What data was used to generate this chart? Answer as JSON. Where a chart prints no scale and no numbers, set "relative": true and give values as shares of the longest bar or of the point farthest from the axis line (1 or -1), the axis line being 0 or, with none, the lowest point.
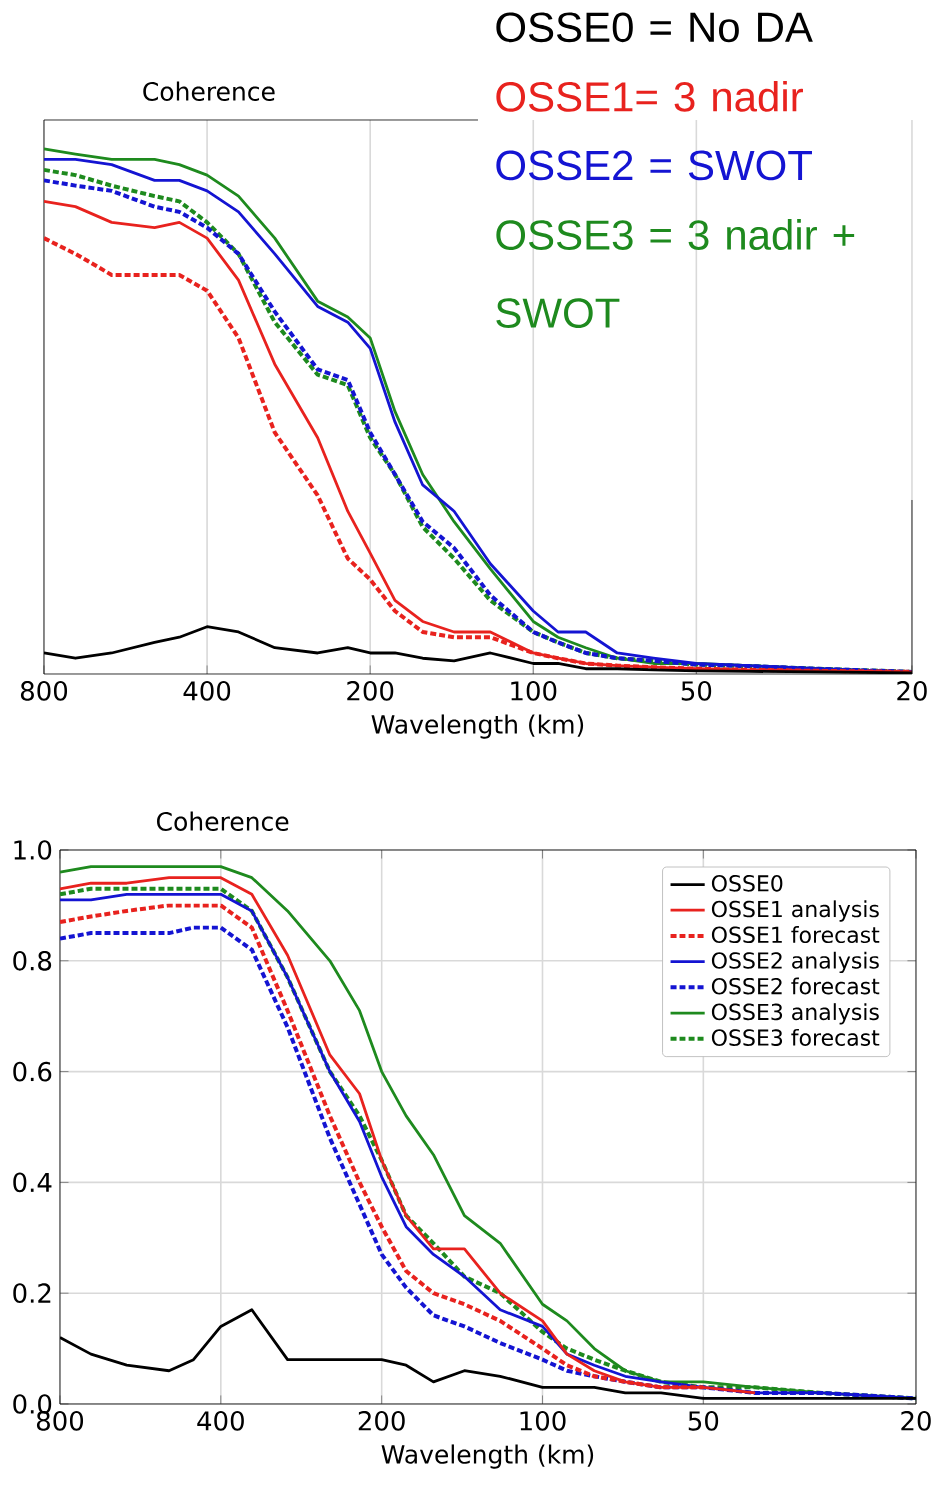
{
  "chart_data": [
    {
      "type": "line",
      "title": "Coherence",
      "xlabel": "Wavelength (km)",
      "relative": true,
      "log": "x",
      "grid": "x",
      "legend": "top right",
      "x": [
        800,
        700,
        600,
        500,
        450,
        400,
        350,
        300,
        250,
        220,
        200,
        180,
        160,
        140,
        120,
        100,
        90,
        80,
        70,
        60,
        50,
        40,
        30,
        20
      ],
      "xlim": [
        800,
        20
      ],
      "xticks": [
        800,
        400,
        200,
        100,
        50,
        20
      ],
      "series": [
        {
          "name": "OSSE0 = No DA",
          "color": "#000000",
          "line_style": "solid",
          "values": [
            0.04,
            0.03,
            0.04,
            0.06,
            0.07,
            0.09,
            0.08,
            0.05,
            0.04,
            0.05,
            0.04,
            0.04,
            0.03,
            0.025,
            0.04,
            0.02,
            0.02,
            0.01,
            0.01,
            0.008,
            0.006,
            0.005,
            0.004,
            0.002
          ]
        },
        {
          "name": "OSSE1= 3 nadir",
          "color": "#e8221e",
          "line_style": "solid",
          "values": [
            0.9,
            0.89,
            0.86,
            0.85,
            0.86,
            0.83,
            0.75,
            0.59,
            0.45,
            0.31,
            0.23,
            0.14,
            0.1,
            0.08,
            0.08,
            0.04,
            0.03,
            0.02,
            0.016,
            0.013,
            0.01,
            0.008,
            0.006,
            0.004
          ]
        },
        {
          "color": "#e8221e",
          "line_style": "dashed",
          "values": [
            0.83,
            0.8,
            0.76,
            0.76,
            0.76,
            0.73,
            0.64,
            0.46,
            0.34,
            0.22,
            0.18,
            0.12,
            0.08,
            0.07,
            0.07,
            0.04,
            0.03,
            0.02,
            0.016,
            0.013,
            0.01,
            0.008,
            0.006,
            0.004
          ]
        },
        {
          "name": "OSSE2 = SWOT",
          "color": "#1414d2",
          "line_style": "solid",
          "values": [
            0.98,
            0.98,
            0.97,
            0.94,
            0.94,
            0.92,
            0.88,
            0.8,
            0.7,
            0.67,
            0.62,
            0.48,
            0.36,
            0.31,
            0.21,
            0.12,
            0.08,
            0.08,
            0.04,
            0.03,
            0.02,
            0.016,
            0.01,
            0.004
          ]
        },
        {
          "color": "#1414d2",
          "line_style": "dashed",
          "values": [
            0.94,
            0.93,
            0.92,
            0.89,
            0.88,
            0.85,
            0.8,
            0.69,
            0.58,
            0.56,
            0.46,
            0.38,
            0.29,
            0.24,
            0.15,
            0.08,
            0.06,
            0.04,
            0.03,
            0.025,
            0.018,
            0.015,
            0.01,
            0.004
          ]
        },
        {
          "name": "OSSE3 = 3 nadir + SWOT",
          "color": "#1e8a1e",
          "line_style": "solid",
          "values": [
            1,
            0.99,
            0.98,
            0.98,
            0.97,
            0.95,
            0.91,
            0.83,
            0.71,
            0.68,
            0.64,
            0.5,
            0.38,
            0.29,
            0.2,
            0.1,
            0.07,
            0.05,
            0.03,
            0.02,
            0.02,
            0.016,
            0.01,
            0.004
          ]
        },
        {
          "color": "#1e8a1e",
          "line_style": "dashed",
          "values": [
            0.96,
            0.95,
            0.93,
            0.91,
            0.9,
            0.86,
            0.8,
            0.67,
            0.57,
            0.55,
            0.45,
            0.38,
            0.28,
            0.22,
            0.14,
            0.08,
            0.06,
            0.04,
            0.03,
            0.025,
            0.018,
            0.015,
            0.01,
            0.004
          ]
        }
      ]
    },
    {
      "type": "line",
      "title": "Coherence",
      "xlabel": "Wavelength (km)",
      "log": "x",
      "grid": true,
      "legend": "top right",
      "x": [
        800,
        700,
        600,
        500,
        450,
        400,
        350,
        300,
        250,
        220,
        200,
        180,
        160,
        140,
        120,
        100,
        90,
        80,
        70,
        60,
        50,
        40,
        30,
        20
      ],
      "xlim": [
        800,
        20
      ],
      "xticks": [
        800,
        400,
        200,
        100,
        50,
        20
      ],
      "ylim": [
        0,
        1
      ],
      "yticks": [
        {
          "value": 0,
          "label": "0.0"
        },
        {
          "value": 0.2,
          "label": "0.2"
        },
        {
          "value": 0.4,
          "label": "0.4"
        },
        {
          "value": 0.6,
          "label": "0.6"
        },
        {
          "value": 0.8,
          "label": "0.8"
        },
        {
          "value": 1,
          "label": "1.0"
        }
      ],
      "series": [
        {
          "name": "OSSE0",
          "color": "#000000",
          "line_style": "solid",
          "values": [
            0.12,
            0.09,
            0.07,
            0.06,
            0.08,
            0.14,
            0.17,
            0.08,
            0.08,
            0.08,
            0.08,
            0.07,
            0.04,
            0.06,
            0.05,
            0.03,
            0.03,
            0.03,
            0.02,
            0.02,
            0.01,
            0.01,
            0.01,
            0.01
          ]
        },
        {
          "name": "OSSE1 analysis",
          "color": "#e8221e",
          "line_style": "solid",
          "values": [
            0.93,
            0.94,
            0.94,
            0.95,
            0.95,
            0.95,
            0.92,
            0.81,
            0.63,
            0.56,
            0.44,
            0.34,
            0.28,
            0.28,
            0.2,
            0.15,
            0.09,
            0.06,
            0.04,
            0.03,
            0.03,
            0.02,
            null,
            null
          ]
        },
        {
          "name": "OSSE1 forecast",
          "color": "#e8221e",
          "line_style": "dashed",
          "values": [
            0.87,
            0.88,
            0.89,
            0.9,
            0.9,
            0.9,
            0.86,
            0.71,
            0.52,
            0.4,
            0.32,
            0.24,
            0.2,
            0.18,
            0.15,
            0.1,
            0.07,
            0.05,
            0.04,
            0.03,
            0.03,
            null,
            null,
            null
          ]
        },
        {
          "name": "OSSE2 analysis",
          "color": "#1414d2",
          "line_style": "solid",
          "values": [
            0.91,
            0.91,
            0.92,
            0.92,
            0.92,
            0.92,
            0.89,
            0.77,
            0.6,
            0.51,
            0.41,
            0.32,
            0.27,
            0.23,
            0.17,
            0.14,
            0.09,
            0.07,
            0.05,
            0.04,
            0.03,
            0.02,
            0.02,
            0.01
          ]
        },
        {
          "name": "OSSE2 forecast",
          "color": "#1414d2",
          "line_style": "dashed",
          "values": [
            0.84,
            0.85,
            0.85,
            0.85,
            0.86,
            0.86,
            0.82,
            0.68,
            0.48,
            0.36,
            0.27,
            0.21,
            0.16,
            0.14,
            0.11,
            0.08,
            0.06,
            0.05,
            0.04,
            0.03,
            0.03,
            0.02,
            0.02,
            0.01
          ]
        },
        {
          "name": "OSSE3 analysis",
          "color": "#1e8a1e",
          "line_style": "solid",
          "values": [
            0.96,
            0.97,
            0.97,
            0.97,
            0.97,
            0.97,
            0.95,
            0.89,
            0.8,
            0.71,
            0.6,
            0.52,
            0.45,
            0.34,
            0.29,
            0.18,
            0.15,
            0.1,
            0.06,
            0.04,
            0.04,
            0.03,
            0.02,
            0.01
          ]
        },
        {
          "name": "OSSE3 forecast",
          "color": "#1e8a1e",
          "line_style": "dashed",
          "values": [
            0.92,
            0.93,
            0.93,
            0.93,
            0.93,
            0.93,
            0.89,
            0.77,
            0.6,
            0.52,
            0.44,
            0.34,
            0.29,
            0.23,
            0.2,
            0.13,
            0.1,
            0.08,
            0.06,
            0.04,
            0.03,
            0.03,
            0.02,
            0.01
          ]
        }
      ]
    }
  ]
}
